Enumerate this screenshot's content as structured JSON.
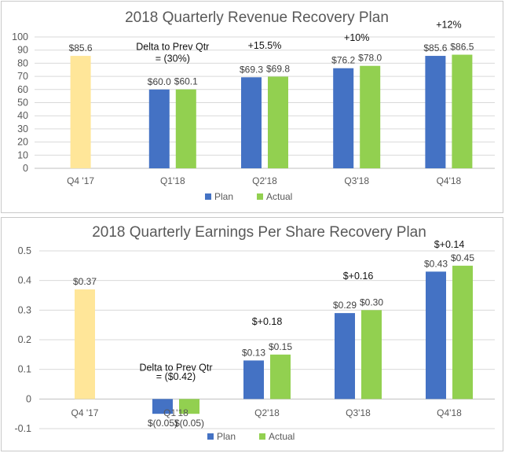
{
  "chart_data": [
    {
      "type": "bar",
      "title": "2018 Quarterly Revenue Recovery Plan",
      "categories": [
        "Q4 '17",
        "Q1'18",
        "Q2'18",
        "Q3'18",
        "Q4'18"
      ],
      "yticks": [
        "100",
        "90",
        "80",
        "70",
        "60",
        "50",
        "40",
        "30",
        "20",
        "10",
        "0"
      ],
      "ylim": [
        0,
        100
      ],
      "series": [
        {
          "name": "Plan",
          "color": "#4472c4",
          "values": [
            null,
            60.0,
            69.3,
            76.2,
            85.6
          ],
          "labels": [
            "",
            "$60.0",
            "$69.3",
            "$76.2",
            "$85.6"
          ]
        },
        {
          "name": "Actual",
          "color": "#92d050",
          "values": [
            null,
            60.1,
            69.8,
            78.0,
            86.5
          ],
          "labels": [
            "",
            "$60.1",
            "$69.8",
            "$78.0",
            "$86.5"
          ]
        }
      ],
      "baseline": {
        "category": "Q4 '17",
        "value": 85.6,
        "label": "$85.6",
        "color": "#ffe699"
      },
      "annotations": [
        {
          "text": "Delta to Prev Qtr",
          "category": "Q1'18",
          "y": 90
        },
        {
          "text": "= (30%)",
          "category": "Q1'18",
          "y": 81
        },
        {
          "text": "+15.5%",
          "category": "Q2'18",
          "y": 91
        },
        {
          "text": "+10%",
          "category": "Q3'18",
          "y": 97
        },
        {
          "text": "+12%",
          "category": "Q4'18",
          "y": 107
        }
      ],
      "legend": {
        "position": "bottom",
        "items": [
          "Plan",
          "Actual"
        ]
      }
    },
    {
      "type": "bar",
      "title": "2018 Quarterly Earnings Per Share Recovery Plan",
      "categories": [
        "Q4 '17",
        "Q1'18",
        "Q2'18",
        "Q3'18",
        "Q4'18"
      ],
      "yticks": [
        "0.5",
        "0.4",
        "0.3",
        "0.2",
        "0.1",
        "0",
        "-0.1"
      ],
      "ylim": [
        -0.1,
        0.5
      ],
      "series": [
        {
          "name": "Plan",
          "color": "#4472c4",
          "values": [
            null,
            -0.05,
            0.13,
            0.29,
            0.43
          ],
          "labels": [
            "",
            "$(0.05)",
            "$0.13",
            "$0.29",
            "$0.43"
          ]
        },
        {
          "name": "Actual",
          "color": "#92d050",
          "values": [
            null,
            -0.05,
            0.15,
            0.3,
            0.45
          ],
          "labels": [
            "",
            "$(0.05)",
            "$0.15",
            "$0.30",
            "$0.45"
          ]
        }
      ],
      "baseline": {
        "category": "Q4 '17",
        "value": 0.37,
        "label": "$0.37",
        "color": "#ffe699"
      },
      "annotations": [
        {
          "text": "Delta to Prev Qtr",
          "category": "Q1'18",
          "y": 0.095
        },
        {
          "text": "= ($0.42)",
          "category": "Q1'18",
          "y": 0.065
        },
        {
          "text": "$+0.18",
          "category": "Q2'18",
          "y": 0.25
        },
        {
          "text": "$+0.16",
          "category": "Q3'18",
          "y": 0.405
        },
        {
          "text": "$+0.14",
          "category": "Q4'18",
          "y": 0.51
        }
      ],
      "legend": {
        "position": "bottom",
        "items": [
          "Plan",
          "Actual"
        ]
      }
    }
  ]
}
